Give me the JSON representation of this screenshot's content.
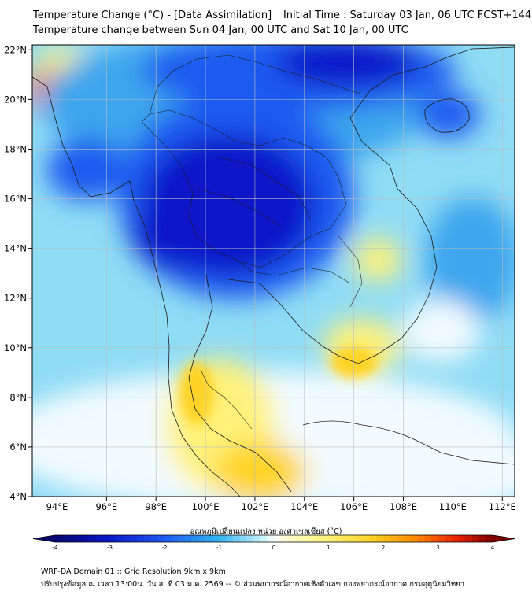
{
  "title": {
    "line1": "Temperature Change (°C) - [Data Assimilation] _ Initial Time : Saturday 03 Jan, 06 UTC FCST+144",
    "line2": "Temperature change between Sun 04 Jan, 00 UTC and Sat 10 Jan, 00 UTC"
  },
  "axes": {
    "lon_ticks": [
      "94°E",
      "96°E",
      "98°E",
      "100°E",
      "102°E",
      "104°E",
      "106°E",
      "108°E",
      "110°E",
      "112°E"
    ],
    "lat_ticks": [
      "22°N",
      "20°N",
      "18°N",
      "16°N",
      "14°N",
      "12°N",
      "10°N",
      "8°N",
      "6°N",
      "4°N"
    ],
    "lon_range": [
      93,
      112.5
    ],
    "lat_range": [
      4,
      22.2
    ]
  },
  "colorbar": {
    "label": "อุณหภูมิเปลี่ยนแปลง หน่วย องศาเซลเซียส (°C)",
    "ticks": [
      "-4",
      "-3",
      "-2",
      "-1",
      "0",
      "1",
      "2",
      "3",
      "4"
    ],
    "range": [
      -4,
      4
    ]
  },
  "footer": {
    "line1": "WRF-DA Domain 01 :: Grid Resolution 9km x 9km",
    "line2": "ปรับปรุงข้อมูล ณ เวลา 13:00น. วัน ส. ที่ 03 ม.ค. 2569 -- © ส่วนพยากรณ์อากาศเชิงตัวเลข กองพยากรณ์อากาศ กรมอุตุนิยมวิทยา"
  },
  "colors": {
    "deep_cold": "#0a16c8",
    "cold": "#1f5af0",
    "mid_cold": "#3ca6ee",
    "light_cold": "#8fdcf5",
    "neutral": "#f2fbff",
    "warm": "#fff27a",
    "warmer": "#ffd428",
    "hot": "#ff6a00"
  }
}
